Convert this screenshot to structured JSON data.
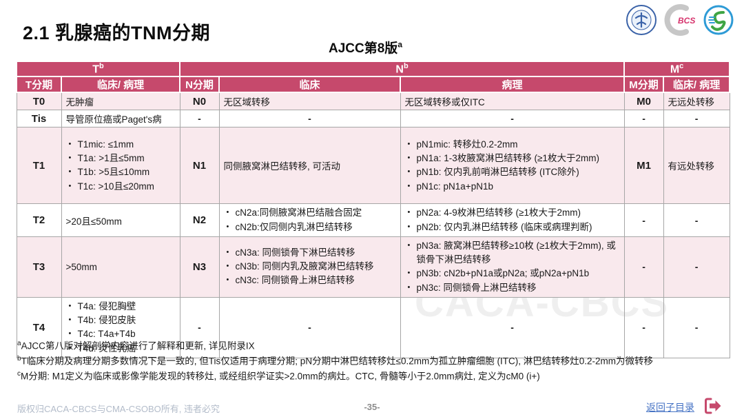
{
  "page": {
    "title": "2.1 乳腺癌的TNM分期",
    "subtitle_base": "AJCC第8版",
    "subtitle_sup": "a"
  },
  "logos": {
    "bcs_label": "BCS"
  },
  "colors": {
    "header_bg": "#c6496c",
    "row_pink": "#f9e9ed",
    "accent_crimson": "#c6496c",
    "link_blue": "#4472c4"
  },
  "table": {
    "group_headers": [
      {
        "base": "T",
        "sup": "b"
      },
      {
        "base": "N",
        "sup": "b"
      },
      {
        "base": "M",
        "sup": "c"
      }
    ],
    "column_headers": [
      "T分期",
      "临床/ 病理",
      "N分期",
      "临床",
      "病理",
      "M分期",
      "临床/ 病理"
    ],
    "rows": [
      {
        "bg": "pink",
        "cells": [
          {
            "type": "stage",
            "text": "T0"
          },
          {
            "type": "text",
            "text": "无肿瘤"
          },
          {
            "type": "stage",
            "text": "N0"
          },
          {
            "type": "text",
            "text": "无区域转移"
          },
          {
            "type": "text",
            "text": "无区域转移或仅ITC"
          },
          {
            "type": "stage",
            "text": "M0"
          },
          {
            "type": "text",
            "text": "无远处转移"
          }
        ]
      },
      {
        "bg": "white",
        "cells": [
          {
            "type": "stage",
            "text": "Tis"
          },
          {
            "type": "text",
            "text": "导管原位癌或Paget's病"
          },
          {
            "type": "dash"
          },
          {
            "type": "dash"
          },
          {
            "type": "dash"
          },
          {
            "type": "dash"
          },
          {
            "type": "dash"
          }
        ]
      },
      {
        "bg": "pink",
        "cells": [
          {
            "type": "stage",
            "text": "T1"
          },
          {
            "type": "list",
            "items": [
              "T1mic: ≤1mm",
              "T1a: >1且≤5mm",
              "T1b: >5且≤10mm",
              "T1c: >10且≤20mm"
            ]
          },
          {
            "type": "stage",
            "text": "N1"
          },
          {
            "type": "text",
            "text": "同侧腋窝淋巴结转移, 可活动"
          },
          {
            "type": "list",
            "items": [
              "pN1mic: 转移灶0.2-2mm",
              "pN1a: 1-3枚腋窝淋巴结转移 (≥1枚大于2mm)",
              "pN1b: 仅内乳前哨淋巴结转移 (ITC除外)",
              "pN1c: pN1a+pN1b"
            ]
          },
          {
            "type": "stage",
            "text": "M1"
          },
          {
            "type": "text",
            "text": "有远处转移"
          }
        ]
      },
      {
        "bg": "white",
        "cells": [
          {
            "type": "stage",
            "text": "T2"
          },
          {
            "type": "text",
            "text": ">20且≤50mm"
          },
          {
            "type": "stage",
            "text": "N2"
          },
          {
            "type": "list",
            "items": [
              "cN2a:同侧腋窝淋巴结融合固定",
              "cN2b:仅同侧内乳淋巴结转移"
            ]
          },
          {
            "type": "list",
            "items": [
              "pN2a: 4-9枚淋巴结转移 (≥1枚大于2mm)",
              "pN2b: 仅内乳淋巴结转移 (临床或病理判断)"
            ]
          },
          {
            "type": "dash"
          },
          {
            "type": "dash"
          }
        ]
      },
      {
        "bg": "pink",
        "cells": [
          {
            "type": "stage",
            "text": "T3"
          },
          {
            "type": "text",
            "text": ">50mm"
          },
          {
            "type": "stage",
            "text": "N3"
          },
          {
            "type": "list",
            "items": [
              "cN3a: 同侧锁骨下淋巴结转移",
              "cN3b: 同侧内乳及腋窝淋巴结转移",
              "cN3c: 同侧锁骨上淋巴结转移"
            ]
          },
          {
            "type": "list",
            "items": [
              "pN3a: 腋窝淋巴结转移≥10枚 (≥1枚大于2mm), 或锁骨下淋巴结转移",
              "pN3b: cN2b+pN1a或pN2a; 或pN2a+pN1b",
              "pN3c: 同侧锁骨上淋巴结转移"
            ]
          },
          {
            "type": "dash"
          },
          {
            "type": "dash"
          }
        ]
      },
      {
        "bg": "white",
        "cells": [
          {
            "type": "stage",
            "text": "T4"
          },
          {
            "type": "list",
            "items": [
              "T4a: 侵犯胸壁",
              "T4b: 侵犯皮肤",
              "T4c: T4a+T4b",
              "T4d: 炎性乳癌"
            ]
          },
          {
            "type": "dash"
          },
          {
            "type": "dash"
          },
          {
            "type": "dash"
          },
          {
            "type": "dash"
          },
          {
            "type": "dash"
          }
        ]
      }
    ]
  },
  "footnotes": [
    {
      "marker": "a",
      "text": "AJCC第八版对解剖学内容进行了解释和更新, 详见附录IX"
    },
    {
      "marker": "b",
      "text": "T临床分期及病理分期多数情况下是一致的, 但Tis仅适用于病理分期; pN分期中淋巴结转移灶≤0.2mm为孤立肿瘤细胞 (ITC), 淋巴结转移灶0.2-2mm为微转移"
    },
    {
      "marker": "c",
      "text": "M分期: M1定义为临床或影像学能发现的转移灶, 或经组织学证实>2.0mm的病灶。CTC, 骨髓等小于2.0mm病灶, 定义为cM0 (i+)"
    }
  ],
  "footer": {
    "copyright": "版权归CACA-CBCS与CMA-CSOBO所有, 违者必究",
    "page_number": "-35-",
    "back_link": "返回子目录"
  },
  "watermark": "CACA-CBCS"
}
